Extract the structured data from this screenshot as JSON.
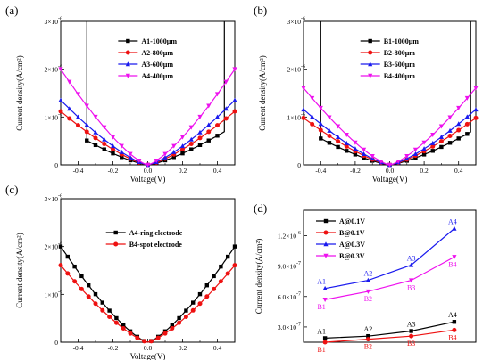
{
  "chart_data": [
    {
      "panel": "(a)",
      "type": "line",
      "xlabel": "Voltage(V)",
      "ylabel": "Current density(A/cm²)",
      "xlim": [
        -0.5,
        0.5
      ],
      "ylim": [
        0,
        3e-06
      ],
      "x_ticks": [
        -0.4,
        -0.2,
        0.0,
        0.2,
        0.4
      ],
      "x_tick_labels": [
        "-0.4",
        "-0.2",
        "0.0",
        "0.2",
        "0.4"
      ],
      "y_ticks": [
        0,
        1e-06,
        2e-06,
        3e-06
      ],
      "y_tick_labels": [
        "0",
        "1×10",
        "2×10",
        "3×10"
      ],
      "y_tick_exponent": "-6",
      "legend_position": "top-right",
      "series": [
        {
          "name": "A1-1000μm",
          "color": "#000000",
          "marker": "square",
          "k": 2.1e-06,
          "window": [
            -0.35,
            0.44
          ]
        },
        {
          "name": "A2-800μm",
          "color": "#ee1111",
          "marker": "circle",
          "k": 2.85e-06
        },
        {
          "name": "A3-600μm",
          "color": "#1a1aee",
          "marker": "triangle-up",
          "k": 3.45e-06
        },
        {
          "name": "A4-400μm",
          "color": "#ee11ee",
          "marker": "triangle-down",
          "k": 5.1e-06
        }
      ]
    },
    {
      "panel": "(b)",
      "type": "line",
      "xlabel": "Voltage(V)",
      "ylabel": "Current density(A/cm²)",
      "xlim": [
        -0.5,
        0.5
      ],
      "ylim": [
        0,
        3e-06
      ],
      "x_ticks": [
        -0.4,
        -0.2,
        0.0,
        0.2,
        0.4
      ],
      "x_tick_labels": [
        "-0.4",
        "-0.2",
        "0.0",
        "0.2",
        "0.4"
      ],
      "y_ticks": [
        0,
        1e-06,
        2e-06,
        3e-06
      ],
      "y_tick_labels": [
        "0",
        "1×10",
        "2×10",
        "3×10"
      ],
      "y_tick_exponent": "-6",
      "legend_position": "top-right",
      "series": [
        {
          "name": "B1-1000μm",
          "color": "#000000",
          "marker": "square",
          "k": 1.9e-06,
          "window": [
            -0.4,
            0.47
          ]
        },
        {
          "name": "B2-800μm",
          "color": "#ee1111",
          "marker": "circle",
          "k": 2.5e-06
        },
        {
          "name": "B3-600μm",
          "color": "#1a1aee",
          "marker": "triangle-up",
          "k": 2.95e-06
        },
        {
          "name": "B4-400μm",
          "color": "#ee11ee",
          "marker": "triangle-down",
          "k": 4.1e-06
        }
      ]
    },
    {
      "panel": "(c)",
      "type": "line",
      "xlabel": "Voltage(V)",
      "ylabel": "Current density(A/cm²)",
      "xlim": [
        -0.5,
        0.5
      ],
      "ylim": [
        0,
        3e-06
      ],
      "x_ticks": [
        -0.4,
        -0.2,
        0.0,
        0.2,
        0.4
      ],
      "x_tick_labels": [
        "-0.4",
        "-0.2",
        "0.0",
        "0.2",
        "0.4"
      ],
      "y_ticks": [
        0,
        1e-06,
        2e-06,
        3e-06
      ],
      "y_tick_labels": [
        "0",
        "1×10",
        "2×10",
        "3×10"
      ],
      "y_tick_exponent": "-6",
      "legend_position": "top-right",
      "series": [
        {
          "name": "A4-ring electrode",
          "color": "#000000",
          "marker": "square",
          "k": 5.1e-06
        },
        {
          "name": "B4-spot electrode",
          "color": "#ee1111",
          "marker": "circle",
          "k": 4.1e-06
        }
      ]
    },
    {
      "panel": "(d)",
      "type": "line",
      "xlabel": "",
      "ylabel": "Current density(A/cm²)",
      "xlim": [
        0.5,
        4.5
      ],
      "ylim": [
        1.5e-07,
        1.45e-06
      ],
      "y_ticks": [
        3e-07,
        6e-07,
        9e-07,
        1.2e-06
      ],
      "y_tick_labels": [
        "3.0×10",
        "6.0×10",
        "9.0×10",
        "1.2×10"
      ],
      "y_tick_exponents": [
        "-7",
        "-7",
        "-7",
        "-6"
      ],
      "legend_position": "top-left",
      "series": [
        {
          "name": "A@0.1V",
          "color": "#000000",
          "marker": "square",
          "values": [
            1.9e-07,
            2.1e-07,
            2.6e-07,
            3.5e-07
          ],
          "labels": [
            "A1",
            "A2",
            "A3",
            "A4"
          ],
          "label_side": "above"
        },
        {
          "name": "B@0.1V",
          "color": "#ee1111",
          "marker": "circle",
          "values": [
            1.5e-07,
            1.8e-07,
            2.1e-07,
            2.7e-07
          ],
          "labels": [
            "B1",
            "B2",
            "B3",
            "B4"
          ],
          "label_side": "below"
        },
        {
          "name": "A@0.3V",
          "color": "#1a1aee",
          "marker": "triangle-up",
          "values": [
            6.8e-07,
            7.6e-07,
            9.1e-07,
            1.27e-06
          ],
          "labels": [
            "A1",
            "A2",
            "A3",
            "A4"
          ],
          "label_side": "above"
        },
        {
          "name": "B@0.3V",
          "color": "#ee11ee",
          "marker": "triangle-down",
          "values": [
            5.7e-07,
            6.5e-07,
            7.6e-07,
            9.9e-07
          ],
          "labels": [
            "B1",
            "B2",
            "B3",
            "B4"
          ],
          "label_side": "below"
        }
      ]
    }
  ]
}
